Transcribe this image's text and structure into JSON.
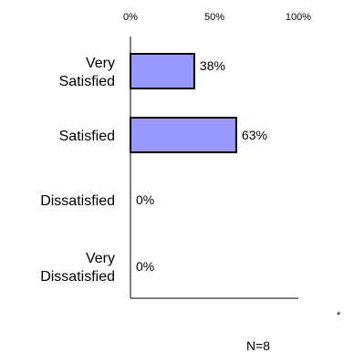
{
  "chart_data": {
    "type": "bar",
    "orientation": "horizontal",
    "categories": [
      [
        "Very",
        "Satisfied"
      ],
      [
        "Satisfied"
      ],
      [
        "Dissatisfied"
      ],
      [
        "Very",
        "Dissatisfied"
      ]
    ],
    "values": [
      38,
      63,
      0,
      0
    ],
    "value_labels": [
      "38%",
      "63%",
      "0%",
      "0%"
    ],
    "xlim": [
      0,
      100
    ],
    "x_ticks": [
      0,
      50,
      100
    ],
    "x_tick_labels": [
      "0%",
      "50%",
      "100%"
    ],
    "x_axis_position": "top",
    "grid": false,
    "legend": "none",
    "title": "",
    "xlabel": "",
    "ylabel": "",
    "bar_color": "#9999ff",
    "bar_edge_color": "#000000"
  },
  "annotations": {
    "sample_size": "N=8",
    "footnote_marker": "*"
  }
}
